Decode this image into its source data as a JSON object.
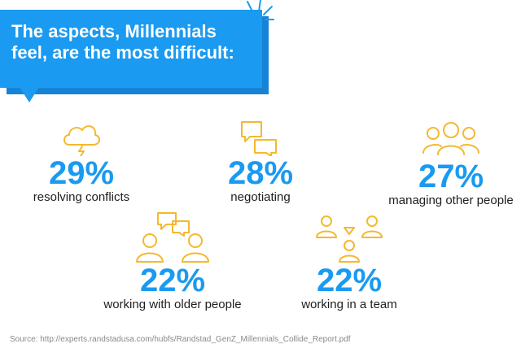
{
  "title": "The aspects, Millennials feel, are the most difficult:",
  "colors": {
    "accent": "#1a9af0",
    "icon": "#f5b82e",
    "text": "#1e1e1e"
  },
  "chart_data": {
    "type": "table",
    "title": "The aspects, Millennials feel, are the most difficult:",
    "items": [
      {
        "label": "resolving conflicts",
        "value": 29,
        "display": "29%",
        "icon": "storm-cloud-icon"
      },
      {
        "label": "negotiating",
        "value": 28,
        "display": "28%",
        "icon": "speech-bubbles-icon"
      },
      {
        "label": "managing other people",
        "value": 27,
        "display": "27%",
        "icon": "group-people-icon"
      },
      {
        "label": "working with older people",
        "value": 22,
        "display": "22%",
        "icon": "two-people-talking-icon"
      },
      {
        "label": "working in a team",
        "value": 22,
        "display": "22%",
        "icon": "team-network-icon"
      }
    ]
  },
  "source": "Source: http://experts.randstadusa.com/hubfs/Randstad_GenZ_Millennials_Collide_Report.pdf"
}
